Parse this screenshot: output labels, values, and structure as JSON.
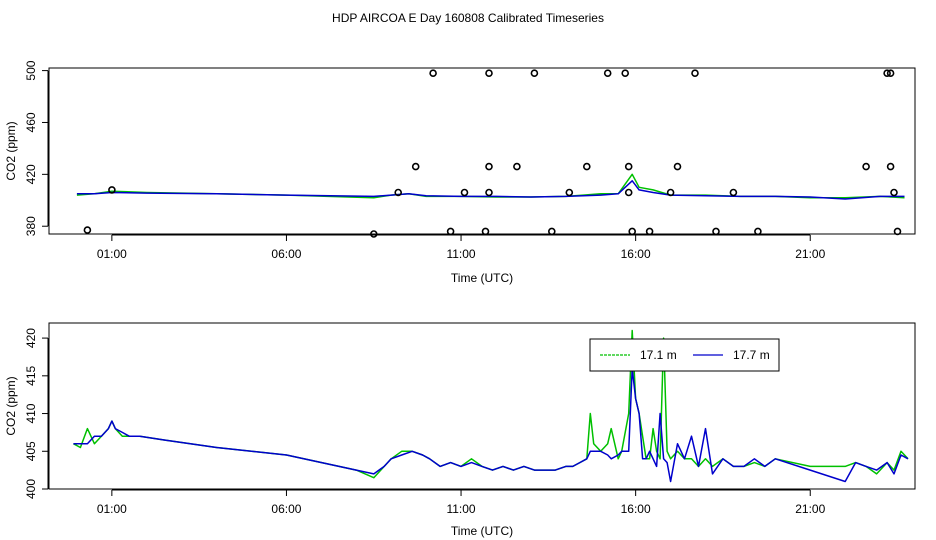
{
  "title": "HDP AIRCOA E  Day 160808  Calibrated Timeseries",
  "colors": {
    "green": "#00c000",
    "blue": "#0000cc",
    "axis": "#000000",
    "points": "#000000"
  },
  "chart_data": [
    {
      "type": "scatter",
      "xlabel": "Time (UTC)",
      "ylabel": "CO2 (ppm)",
      "xlim": [
        -0.8,
        24
      ],
      "ylim": [
        374,
        502
      ],
      "xticks": [
        1,
        6,
        11,
        16,
        21
      ],
      "xtick_labels": [
        "01:00",
        "06:00",
        "11:00",
        "16:00",
        "21:00"
      ],
      "yticks": [
        380,
        420,
        460,
        500
      ],
      "yticks_labels": [
        "380",
        "420",
        "460",
        "500"
      ],
      "lines": [
        {
          "color": "green",
          "x": [
            0,
            0.5,
            1,
            2,
            4,
            6,
            8.5,
            9,
            9.5,
            10,
            11,
            12,
            13,
            14,
            14.5,
            15,
            15.5,
            15.9,
            16.1,
            16.5,
            17,
            18,
            19,
            20,
            21,
            22,
            23,
            23.7
          ],
          "y": [
            404,
            405,
            407,
            406,
            405,
            404,
            402,
            404,
            405,
            403,
            403,
            402.5,
            402.5,
            403,
            404,
            405,
            405,
            420,
            410,
            408,
            404,
            404,
            403,
            403,
            402,
            402,
            403,
            402
          ]
        },
        {
          "color": "blue",
          "x": [
            0,
            0.5,
            1,
            2,
            4,
            6,
            8.5,
            9,
            9.5,
            10,
            11,
            12,
            13,
            14,
            14.5,
            15,
            15.5,
            15.9,
            16.1,
            16.5,
            17,
            18,
            19,
            20,
            21,
            22,
            23,
            23.7
          ],
          "y": [
            405,
            405,
            406,
            405.5,
            405,
            404,
            403,
            404,
            405,
            403.5,
            403,
            403,
            402.5,
            403,
            403.5,
            404,
            405,
            415,
            408,
            406,
            404,
            403.5,
            403,
            403,
            402.5,
            401,
            403,
            403
          ]
        }
      ],
      "points": {
        "x": [
          0.3,
          1.0,
          8.5,
          9.2,
          9.7,
          10.2,
          10.7,
          11.1,
          11.7,
          11.8,
          11.8,
          11.8,
          12.6,
          13.1,
          13.6,
          14.1,
          14.6,
          15.2,
          15.7,
          15.8,
          15.8,
          15.9,
          16.4,
          17.0,
          17.2,
          17.7,
          18.3,
          18.8,
          19.5,
          22.6,
          23.2,
          23.3,
          23.3,
          23.4,
          23.5
        ],
        "y": [
          377,
          408,
          374,
          406,
          426,
          498,
          376,
          406,
          376,
          406,
          426,
          498,
          426,
          498,
          376,
          406,
          426,
          498,
          498,
          426,
          406,
          376,
          376,
          406,
          426,
          498,
          376,
          406,
          376,
          426,
          498,
          498,
          426,
          406,
          376
        ]
      }
    },
    {
      "type": "line",
      "xlabel": "Time (UTC)",
      "ylabel": "CO2 (ppm)",
      "xlim": [
        -0.8,
        24
      ],
      "ylim": [
        400,
        422
      ],
      "xticks": [
        1,
        6,
        11,
        16,
        21
      ],
      "xtick_labels": [
        "01:00",
        "06:00",
        "11:00",
        "16:00",
        "21:00"
      ],
      "yticks": [
        400,
        405,
        410,
        415,
        420
      ],
      "yticks_labels": [
        "400",
        "405",
        "410",
        "415",
        "420"
      ],
      "legend": {
        "placement": "top-right",
        "entries": [
          "17.1 m",
          "17.7 m"
        ]
      },
      "series": [
        {
          "name": "17.1 m",
          "color": "green",
          "x": [
            -0.1,
            0.1,
            0.3,
            0.5,
            0.7,
            0.9,
            1.0,
            1.1,
            1.3,
            1.5,
            1.8,
            2.5,
            4,
            6,
            8,
            8.5,
            8.8,
            9.0,
            9.3,
            9.6,
            9.9,
            10.1,
            10.4,
            10.7,
            11.0,
            11.3,
            11.6,
            11.9,
            12.2,
            12.5,
            12.8,
            13.1,
            13.4,
            13.7,
            14.0,
            14.2,
            14.4,
            14.6,
            14.7,
            14.8,
            15.0,
            15.2,
            15.3,
            15.5,
            15.6,
            15.8,
            15.9,
            16.0,
            16.1,
            16.2,
            16.3,
            16.4,
            16.5,
            16.6,
            16.7,
            16.8,
            16.9,
            17.0,
            17.2,
            17.4,
            17.6,
            17.8,
            18.0,
            18.2,
            18.5,
            18.8,
            19.1,
            19.4,
            19.7,
            20.0,
            21.0,
            22.0,
            22.3,
            22.6,
            22.9,
            23.2,
            23.4,
            23.6,
            23.8
          ],
          "y": [
            406,
            405.5,
            408,
            406,
            407,
            408,
            409,
            408,
            407,
            407,
            407,
            406.5,
            405.5,
            404.5,
            402.5,
            401.5,
            403,
            404,
            405,
            405,
            404.5,
            404,
            403,
            403.5,
            403,
            404,
            403,
            402.5,
            403,
            402.5,
            403,
            402.5,
            402.5,
            402.5,
            403,
            403,
            403.5,
            404,
            410,
            406,
            405,
            406,
            408,
            404,
            405,
            410,
            421,
            412,
            410,
            407,
            404,
            404,
            408,
            405,
            404,
            420,
            405,
            404,
            405,
            404,
            404,
            403,
            404,
            403,
            404,
            403,
            403,
            403.5,
            403,
            404,
            403,
            403,
            403.5,
            403,
            402,
            403.5,
            402.5,
            405,
            404
          ]
        },
        {
          "name": "17.7 m",
          "color": "blue",
          "x": [
            -0.1,
            0.1,
            0.3,
            0.5,
            0.7,
            0.9,
            1.0,
            1.1,
            1.3,
            1.5,
            1.8,
            2.5,
            4,
            6,
            8,
            8.5,
            8.8,
            9.0,
            9.3,
            9.6,
            9.9,
            10.1,
            10.4,
            10.7,
            11.0,
            11.3,
            11.6,
            11.9,
            12.2,
            12.5,
            12.8,
            13.1,
            13.4,
            13.7,
            14.0,
            14.2,
            14.4,
            14.6,
            14.7,
            14.8,
            15.0,
            15.2,
            15.3,
            15.5,
            15.6,
            15.8,
            15.9,
            16.0,
            16.1,
            16.2,
            16.3,
            16.4,
            16.5,
            16.6,
            16.7,
            16.8,
            16.9,
            17.0,
            17.2,
            17.4,
            17.6,
            17.8,
            18.0,
            18.2,
            18.5,
            18.8,
            19.1,
            19.4,
            19.7,
            20.0,
            21.0,
            22.0,
            22.3,
            22.6,
            22.9,
            23.2,
            23.4,
            23.6,
            23.8
          ],
          "y": [
            406,
            406,
            406,
            407,
            407,
            408,
            409,
            408,
            407.5,
            407,
            407,
            406.5,
            405.5,
            404.5,
            402.5,
            402,
            403,
            404,
            404.5,
            405,
            404.5,
            404,
            403,
            403.5,
            403,
            403.5,
            403,
            402.5,
            403,
            402.5,
            403,
            402.5,
            402.5,
            402.5,
            403,
            403,
            403.5,
            404,
            405,
            405,
            405,
            404.5,
            404,
            404.5,
            405,
            405,
            416,
            412,
            410,
            404,
            404,
            405,
            404,
            403,
            410,
            404,
            403.5,
            401,
            406,
            404,
            407,
            403,
            408,
            402,
            404,
            403,
            403,
            404,
            403,
            404,
            402.5,
            401,
            403.5,
            403,
            402.5,
            403.5,
            402,
            404.5,
            404
          ]
        }
      ]
    }
  ]
}
